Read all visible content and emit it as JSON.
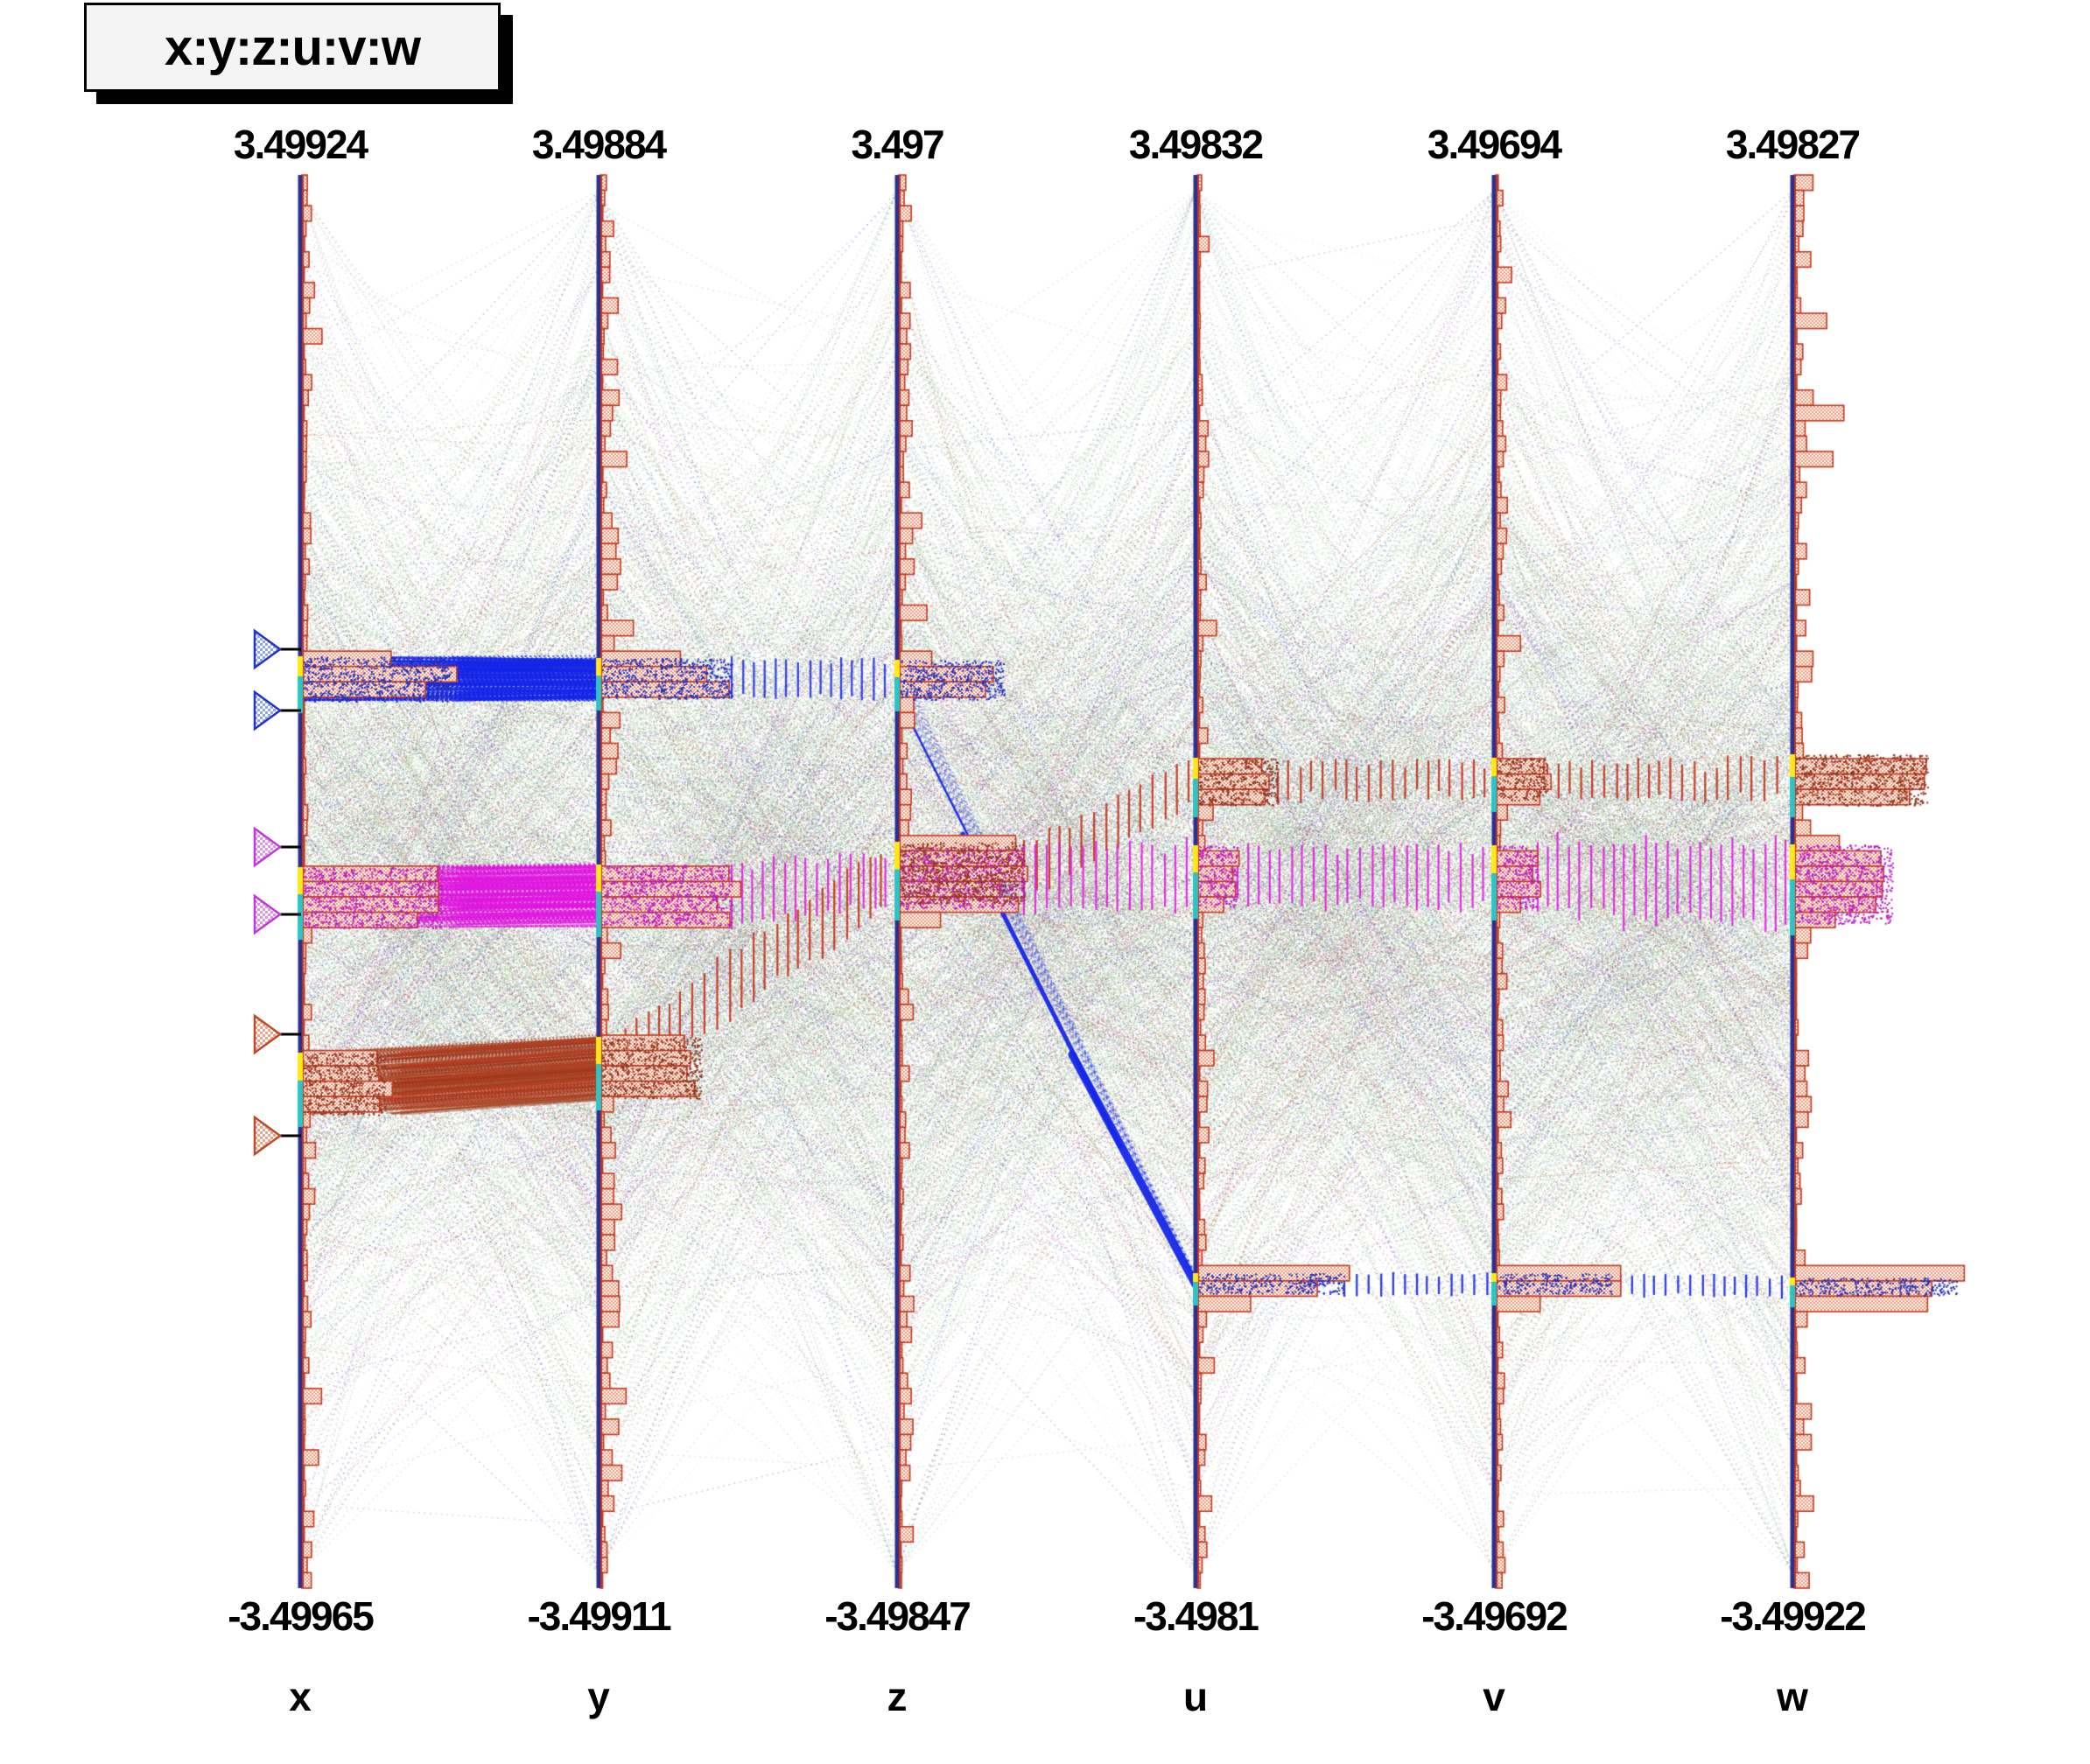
{
  "title": "x:y:z:u:v:w",
  "colors": {
    "axis_line": "#2b3090",
    "axis_red_edge": "#c03a20",
    "hist_fill": "#ef9678",
    "hist_edge": "#c03a20",
    "range_yellow": "#ffe81a",
    "range_cyan": "#2fc4c4",
    "selection_blue": "#1527e8",
    "selection_violet": "#e018e0",
    "selection_orange": "#c23b22",
    "noise_green": "#9dc49b",
    "noise_red": "#b54526",
    "noise_blue": "#2b35cc",
    "noise_magenta": "#cc2ecc",
    "title_bg": "#f4f4f4"
  },
  "chart_data": {
    "type": "parallel-coordinates",
    "title": "x:y:z:u:v:w",
    "axes": [
      {
        "name": "x",
        "max_label": "3.49924",
        "min_label": "-3.49965",
        "max": 3.49924,
        "min": -3.49965
      },
      {
        "name": "y",
        "max_label": "3.49884",
        "min_label": "-3.49911",
        "max": 3.49884,
        "min": -3.49911
      },
      {
        "name": "z",
        "max_label": "3.497",
        "min_label": "-3.49847",
        "max": 3.497,
        "min": -3.49847
      },
      {
        "name": "u",
        "max_label": "3.49832",
        "min_label": "-3.4981",
        "max": 3.49832,
        "min": -3.4981
      },
      {
        "name": "v",
        "max_label": "3.49694",
        "min_label": "-3.49692",
        "max": 3.49694,
        "min": -3.49692
      },
      {
        "name": "w",
        "max_label": "3.49827",
        "min_label": "-3.49922",
        "max": 3.49827,
        "min": -3.49922
      }
    ],
    "selections": [
      {
        "name": "blue",
        "color": "#1527e8",
        "slider_range_x": [
          0.85,
          1.15
        ],
        "ranges": {
          "x": [
            0.9,
            1.12
          ],
          "y": [
            0.91,
            1.11
          ],
          "z": [
            0.9,
            1.1
          ],
          "u": [
            -2.04,
            -1.94
          ],
          "v": [
            -2.04,
            -1.94
          ],
          "w": [
            -2.07,
            -1.91
          ]
        }
      },
      {
        "name": "violet",
        "color": "#e018e0",
        "slider_range_x": [
          -0.16,
          0.17
        ],
        "ranges": {
          "x": [
            -0.23,
            0.06
          ],
          "y": [
            -0.22,
            0.08
          ],
          "z": [
            -0.14,
            0.17
          ],
          "u": [
            -0.14,
            0.18
          ],
          "v": [
            -0.14,
            0.18
          ],
          "w": [
            -0.21,
            0.21
          ]
        }
      },
      {
        "name": "orange",
        "color": "#c23b22",
        "slider_range_x": [
          -1.26,
          -0.76
        ],
        "ranges": {
          "x": [
            -1.16,
            -0.85
          ],
          "y": [
            -1.09,
            -0.77
          ],
          "z": [
            -0.12,
            0.23
          ],
          "u": [
            0.35,
            0.62
          ],
          "v": [
            0.35,
            0.62
          ],
          "w": [
            0.35,
            0.63
          ]
        }
      }
    ],
    "histogram_bumps": {
      "x": [
        {
          "c": 1.0,
          "half": 0.11,
          "w": 170
        },
        {
          "c": -0.08,
          "half": 0.15,
          "w": 160
        },
        {
          "c": -1.0,
          "half": 0.16,
          "w": 95
        }
      ],
      "y": [
        {
          "c": 1.01,
          "half": 0.1,
          "w": 150
        },
        {
          "c": -0.07,
          "half": 0.15,
          "w": 150
        },
        {
          "c": -0.93,
          "half": 0.16,
          "w": 115
        }
      ],
      "z": [
        {
          "c": 1.0,
          "half": 0.1,
          "w": 120
        },
        {
          "c": 0.02,
          "half": 0.21,
          "w": 143
        }
      ],
      "u": [
        {
          "c": 0.48,
          "half": 0.13,
          "w": 92
        },
        {
          "c": 0.02,
          "half": 0.15,
          "w": 46
        },
        {
          "c": -1.99,
          "half": 0.1,
          "w": 168
        }
      ],
      "v": [
        {
          "c": 0.48,
          "half": 0.13,
          "w": 58
        },
        {
          "c": 0.02,
          "half": 0.15,
          "w": 48
        },
        {
          "c": -1.99,
          "half": 0.1,
          "w": 132
        }
      ],
      "w": [
        {
          "c": 0.49,
          "half": 0.13,
          "w": 152
        },
        {
          "c": 0.0,
          "half": 0.2,
          "w": 112
        },
        {
          "c": -2.0,
          "half": 0.11,
          "w": 185
        }
      ]
    },
    "noise_counts": {
      "green": 900,
      "pale_green": 380,
      "red": 150,
      "blue": 115,
      "magenta": 110
    }
  }
}
